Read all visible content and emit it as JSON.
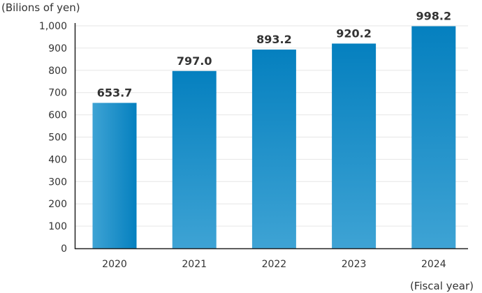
{
  "chart_data": {
    "type": "bar",
    "title": "",
    "ylabel": "(Bilions of yen)",
    "xlabel": "(Fiscal year)",
    "categories": [
      "2020",
      "2021",
      "2022",
      "2023",
      "2024"
    ],
    "values": [
      653.7,
      797.0,
      893.2,
      920.2,
      998.2
    ],
    "value_labels": [
      "653.7",
      "797.0",
      "893.2",
      "920.2",
      "998.2"
    ],
    "ylim": [
      0,
      1000
    ],
    "yticks": [
      0,
      100,
      200,
      300,
      400,
      500,
      600,
      700,
      800,
      900,
      1000
    ],
    "ytick_labels": [
      "0",
      "100",
      "200",
      "300",
      "400",
      "500",
      "600",
      "700",
      "800",
      "900",
      "1,000"
    ],
    "grid": true,
    "colors": {
      "bar_dark": "#0580bf",
      "bar_light": "#3ea3d4",
      "grid": "#e6e6e6",
      "axis": "#222222"
    }
  }
}
